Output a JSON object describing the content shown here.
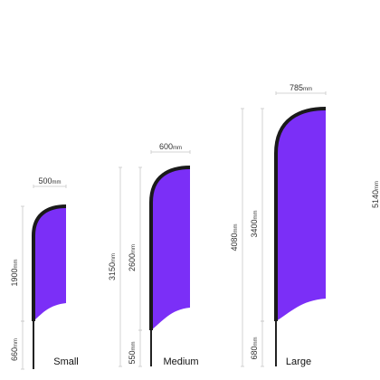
{
  "flags": [
    {
      "name": "Small",
      "width": {
        "value": "500",
        "unit": "mm"
      },
      "total": null,
      "flag": {
        "value": "1900",
        "unit": "mm"
      },
      "pole": {
        "value": "660",
        "unit": "mm"
      }
    },
    {
      "name": "Medium",
      "width": {
        "value": "600",
        "unit": "mm"
      },
      "total": {
        "value": "3150",
        "unit": "mm"
      },
      "flag": {
        "value": "2600",
        "unit": "mm"
      },
      "pole": {
        "value": "550",
        "unit": "mm"
      }
    },
    {
      "name": "Large",
      "width": {
        "value": "785",
        "unit": "mm"
      },
      "total": {
        "value": "4080",
        "unit": "mm"
      },
      "flag": {
        "value": "3400",
        "unit": "mm"
      },
      "pole": {
        "value": "680",
        "unit": "mm"
      }
    },
    {
      "name": null,
      "width": null,
      "total": {
        "value": "5140",
        "unit": "mm"
      },
      "flag": null,
      "pole": null
    }
  ]
}
